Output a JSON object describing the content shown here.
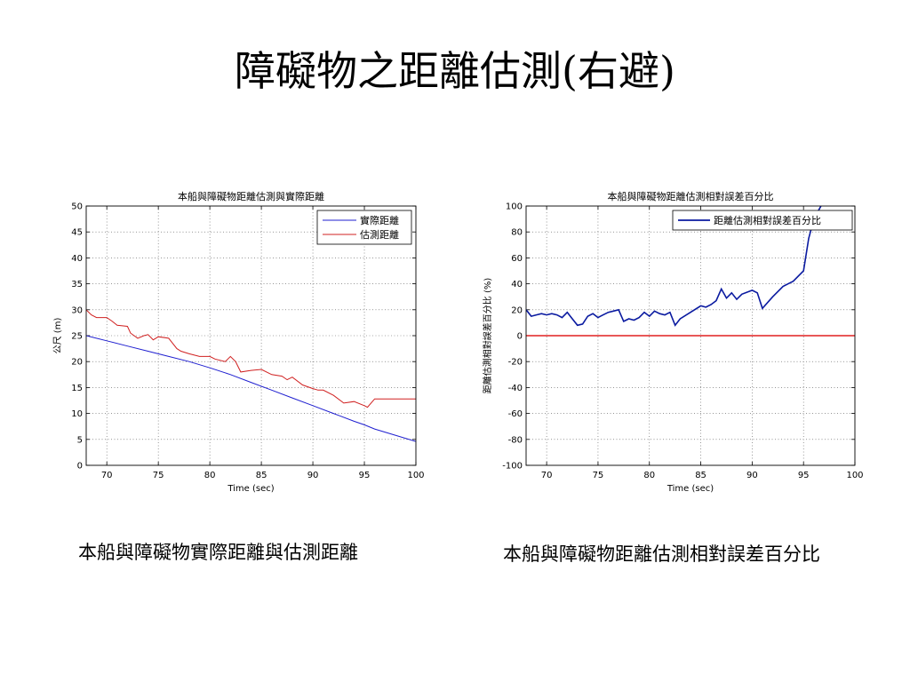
{
  "slide": {
    "title": "障礙物之距離估測(右避)",
    "captions": {
      "left": "本船與障礙物實際距離與估測距離",
      "right": "本船與障礙物距離估測相對誤差百分比"
    }
  },
  "chart_data": [
    {
      "type": "line",
      "title": "本船與障礙物距離估測與實際距離",
      "xlabel": "Time (sec)",
      "ylabel": "公尺 (m)",
      "xlim": [
        68,
        100
      ],
      "ylim": [
        0,
        50
      ],
      "xticks": [
        70,
        75,
        80,
        85,
        90,
        95,
        100
      ],
      "yticks": [
        0,
        5,
        10,
        15,
        20,
        25,
        30,
        35,
        40,
        45,
        50
      ],
      "grid": true,
      "legend_position": "top-right",
      "series": [
        {
          "name": "實際距離",
          "color": "#1f1fd0",
          "x": [
            68,
            70,
            72,
            74,
            76,
            78,
            80,
            82,
            84,
            86,
            88,
            90,
            92,
            94,
            95,
            96,
            98,
            100
          ],
          "y": [
            25,
            24,
            23,
            22,
            21,
            20,
            18.8,
            17.5,
            16,
            14.5,
            13,
            11.5,
            10,
            8.5,
            7.8,
            7,
            5.8,
            4.6
          ]
        },
        {
          "name": "估測距離",
          "color": "#d02020",
          "x": [
            68,
            68.5,
            69,
            70,
            70.5,
            71,
            72,
            72.3,
            73,
            73.6,
            74,
            74.5,
            75,
            76,
            76.8,
            77.2,
            78,
            79,
            80,
            80.5,
            81.5,
            82,
            82.5,
            83,
            84,
            85,
            86,
            87,
            87.5,
            88,
            89,
            90,
            90.5,
            91,
            92,
            93,
            94,
            95,
            95.3,
            96,
            98,
            100
          ],
          "y": [
            30,
            29,
            28.5,
            28.5,
            27.8,
            27,
            26.8,
            25.5,
            24.5,
            25,
            25.2,
            24.2,
            24.8,
            24.5,
            22.5,
            22,
            21.5,
            21,
            21,
            20.5,
            20,
            21,
            20,
            18,
            18.3,
            18.5,
            17.5,
            17.2,
            16.5,
            17,
            15.5,
            14.8,
            14.5,
            14.5,
            13.5,
            12,
            12.3,
            11.5,
            11.2,
            12.8,
            12.8,
            12.8
          ]
        }
      ]
    },
    {
      "type": "line",
      "title": "本船與障礙物距離估測相對誤差百分比",
      "xlabel": "Time (sec)",
      "ylabel": "距離估測相對誤差百分比 (%)",
      "xlim": [
        68,
        100
      ],
      "ylim": [
        -100,
        100
      ],
      "xticks": [
        70,
        75,
        80,
        85,
        90,
        95,
        100
      ],
      "yticks": [
        -100,
        -80,
        -60,
        -40,
        -20,
        0,
        20,
        40,
        60,
        80,
        100
      ],
      "grid": true,
      "legend_position": "top-right",
      "series": [
        {
          "name": "距離估測相對誤差百分比",
          "color": "#0a1aa0",
          "x": [
            68,
            68.5,
            69,
            69.5,
            70,
            70.5,
            71,
            71.5,
            72,
            72.5,
            73,
            73.5,
            74,
            74.5,
            75,
            75.5,
            76,
            76.5,
            77,
            77.5,
            78,
            78.5,
            79,
            79.5,
            80,
            80.5,
            81,
            81.5,
            82,
            82.5,
            83,
            84,
            85,
            85.5,
            86,
            86.5,
            87,
            87.5,
            88,
            88.5,
            89,
            90,
            90.5,
            91,
            92,
            93,
            94,
            95,
            95.5,
            96,
            96.7
          ],
          "y": [
            20,
            15,
            16,
            17,
            16,
            17,
            16,
            14,
            18,
            13,
            8,
            9,
            15,
            17,
            14,
            16,
            18,
            19,
            20,
            11,
            13,
            12,
            14,
            18,
            15,
            19,
            17,
            16,
            18,
            8,
            13,
            18,
            23,
            22,
            24,
            27,
            36,
            29,
            33,
            28,
            32,
            35,
            33,
            21,
            30,
            38,
            42,
            50,
            75,
            90,
            100
          ]
        },
        {
          "name": "",
          "color": "#e02020",
          "x": [
            68,
            100
          ],
          "y": [
            0,
            0
          ]
        }
      ]
    }
  ]
}
